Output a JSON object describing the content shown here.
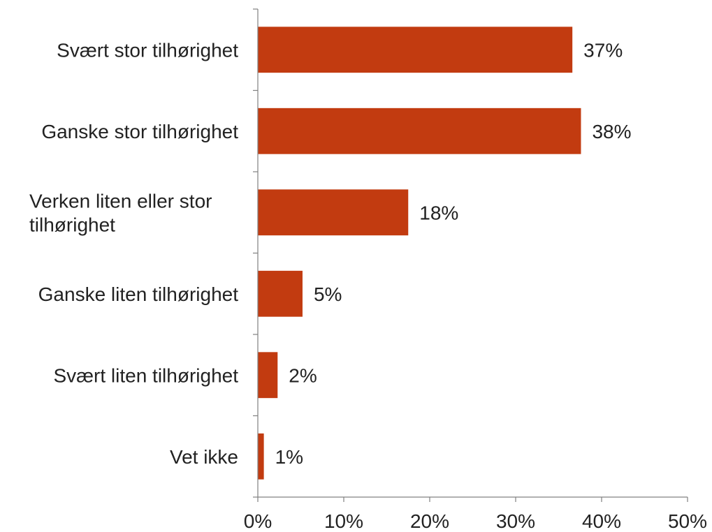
{
  "chart_data": {
    "type": "bar",
    "orientation": "horizontal",
    "title": "",
    "xlabel": "",
    "ylabel": "",
    "categories": [
      "Svært stor tilhørighet",
      "Ganske stor tilhørighet",
      "Verken liten eller stor tilhørighet",
      "Ganske liten tilhørighet",
      "Svært liten tilhørighet",
      "Vet ikke"
    ],
    "category_lines": [
      [
        "Svært stor tilhørighet"
      ],
      [
        "Ganske stor tilhørighet"
      ],
      [
        "Verken liten eller stor",
        "tilhørighet"
      ],
      [
        "Ganske liten tilhørighet"
      ],
      [
        "Svært liten tilhørighet"
      ],
      [
        "Vet ikke"
      ]
    ],
    "values": [
      36.6,
      37.6,
      17.5,
      5.2,
      2.3,
      0.7
    ],
    "data_labels": [
      "37%",
      "38%",
      "18%",
      "5%",
      "2%",
      "1%"
    ],
    "xlim": [
      0,
      50
    ],
    "x_ticks": [
      0,
      10,
      20,
      30,
      40,
      50
    ],
    "x_tick_labels": [
      "0%",
      "10%",
      "20%",
      "30%",
      "40%",
      "50%"
    ],
    "grid": false,
    "legend": "none",
    "bar_color": "#C23B10"
  }
}
